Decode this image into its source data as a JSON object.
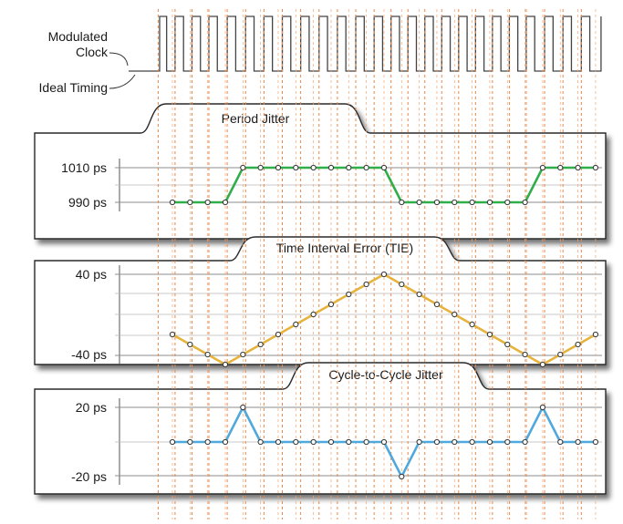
{
  "labels": {
    "modulated_clock_line1": "Modulated",
    "modulated_clock_line2": "Clock",
    "ideal_timing": "Ideal Timing"
  },
  "panels": [
    {
      "title": "Period Jitter",
      "y_ticks": [
        {
          "label": "1010 ps",
          "value": 1010
        },
        {
          "label": "990 ps",
          "value": 990
        }
      ],
      "color": "#2fae49",
      "values": [
        990,
        990,
        990,
        990,
        1010,
        1010,
        1010,
        1010,
        1010,
        1010,
        1010,
        1010,
        1010,
        990,
        990,
        990,
        990,
        990,
        990,
        990,
        990,
        1010,
        1010,
        1010,
        1010
      ]
    },
    {
      "title": "Time Interval Error (TIE)",
      "y_ticks": [
        {
          "label": "40 ps",
          "value": 40
        },
        {
          "label": "-40 ps",
          "value": -40
        }
      ],
      "color": "#e6b33c",
      "values": [
        -20,
        -30,
        -40,
        -50,
        -40,
        -30,
        -20,
        -10,
        0,
        10,
        20,
        30,
        40,
        30,
        20,
        10,
        0,
        -10,
        -20,
        -30,
        -40,
        -50,
        -40,
        -30,
        -20
      ]
    },
    {
      "title": "Cycle-to-Cycle Jitter",
      "y_ticks": [
        {
          "label": "20 ps",
          "value": 20
        },
        {
          "label": "-20 ps",
          "value": -20
        }
      ],
      "color": "#4fa9dc",
      "values": [
        0,
        0,
        0,
        0,
        20,
        0,
        0,
        0,
        0,
        0,
        0,
        0,
        0,
        -20,
        0,
        0,
        0,
        0,
        0,
        0,
        0,
        20,
        0,
        0,
        0
      ]
    }
  ]
}
